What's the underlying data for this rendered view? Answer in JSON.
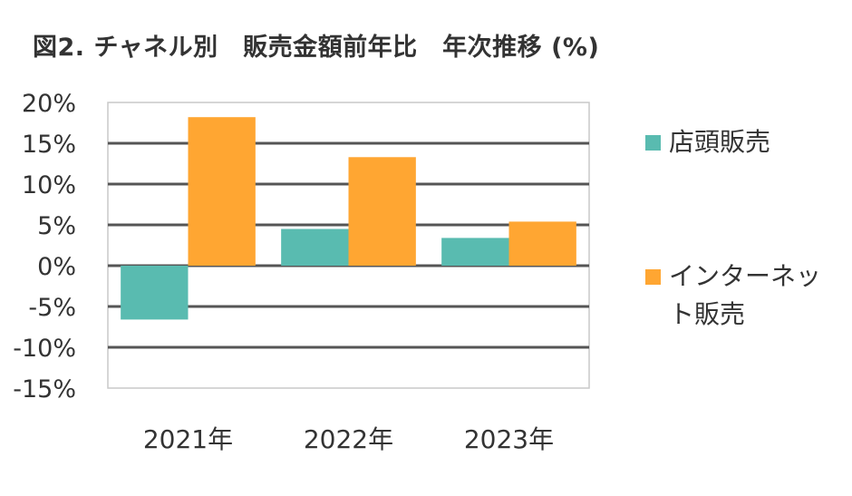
{
  "title": "図2. チャネル別　販売金額前年比　年次推移 (%)",
  "chart_data": {
    "type": "bar",
    "title": "図2. チャネル別　販売金額前年比　年次推移 (%)",
    "xlabel": "",
    "ylabel": "",
    "categories": [
      "2021年",
      "2022年",
      "2023年"
    ],
    "series": [
      {
        "name": "店頭販売",
        "color": "#59BBB0",
        "values": [
          -6.6,
          4.5,
          3.4
        ]
      },
      {
        "name": "インターネット販売",
        "color": "#FFA632",
        "values": [
          18.2,
          13.3,
          5.4
        ]
      }
    ],
    "ylim": [
      -15,
      20
    ],
    "yticks": [
      20,
      15,
      10,
      5,
      0,
      -5,
      -10,
      -15
    ],
    "ytick_labels": [
      "20%",
      "15%",
      "10%",
      "5%",
      "0%",
      "-5%",
      "-10%",
      "-15%"
    ],
    "grid": true,
    "legend_position": "right"
  }
}
